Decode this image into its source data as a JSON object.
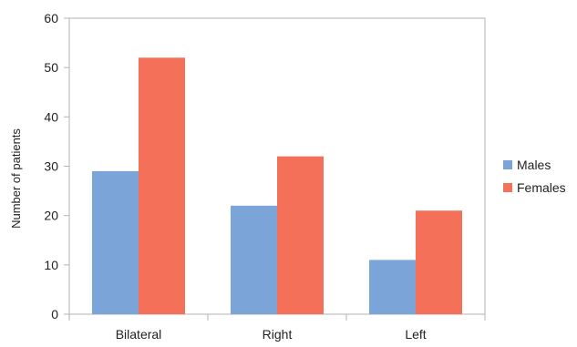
{
  "chart_data": {
    "type": "bar",
    "title": "",
    "xlabel": "",
    "ylabel": "Number of patients",
    "categories": [
      "Bilateral",
      "Right",
      "Left"
    ],
    "series": [
      {
        "name": "Males",
        "values": [
          29,
          22,
          11
        ],
        "color": "#7ba5d9"
      },
      {
        "name": "Females",
        "values": [
          52,
          32,
          21
        ],
        "color": "#f47058"
      }
    ],
    "ylim": [
      0,
      60
    ],
    "yticks": [
      0,
      10,
      20,
      30,
      40,
      50,
      60
    ],
    "grid": false,
    "legend": "right"
  }
}
